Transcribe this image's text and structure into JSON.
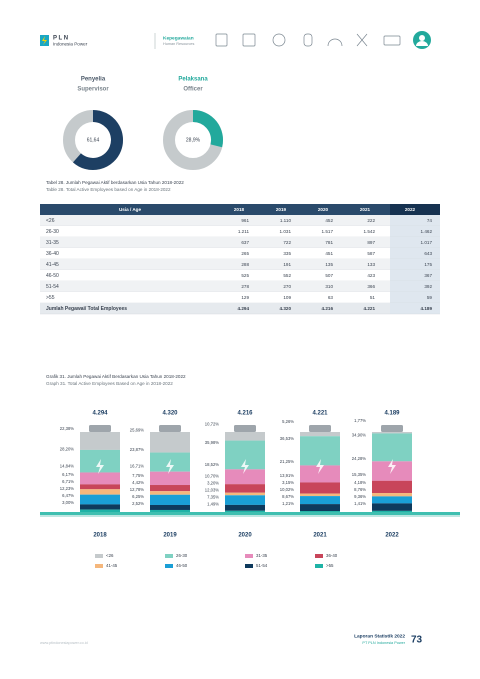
{
  "header": {
    "logo_title": "P L N",
    "logo_subtitle": "Indonesia Power",
    "section": "Kepegawaian",
    "section_en": "Human Resources"
  },
  "donuts": [
    {
      "title": "Penyelia",
      "subtitle": "Supervisor",
      "value": 61.64,
      "value_label": "61,64",
      "color": "#1d3f63"
    },
    {
      "title": "Pelaksana",
      "subtitle": "Officer",
      "value": 28.9,
      "value_label": "28,9%",
      "color": "#22a99c"
    }
  ],
  "table": {
    "caption": "Tabel 28. Jumlah Pegawai Aktif berdasarkan Usia Tahun 2018-2022",
    "caption_en": "Table 28. Total Active Employees based on Age in 2018-2022",
    "header": [
      "Usia / Age",
      "2018",
      "2019",
      "2020",
      "2021",
      "2022"
    ],
    "rows": [
      [
        "<26",
        "961",
        "1.110",
        "452",
        "222",
        "74"
      ],
      [
        "26-30",
        "1.211",
        "1.031",
        "1.517",
        "1.542",
        "1.462"
      ],
      [
        "31-35",
        "637",
        "722",
        "781",
        "897",
        "1.017"
      ],
      [
        "36-40",
        "265",
        "335",
        "451",
        "587",
        "643"
      ],
      [
        "41-45",
        "288",
        "191",
        "135",
        "133",
        "175"
      ],
      [
        "46-50",
        "525",
        "552",
        "507",
        "423",
        "367"
      ],
      [
        "51-54",
        "278",
        "270",
        "310",
        "366",
        "392"
      ],
      [
        ">55",
        "129",
        "109",
        "63",
        "51",
        "59"
      ]
    ],
    "total": [
      "Jumlah Pegawai/ Total Employees",
      "4.294",
      "4.320",
      "4.216",
      "4.221",
      "4.189"
    ]
  },
  "graph": {
    "caption": "Grafik 31. Jumlah Pegawai Aktif Berdasarkan Usia Tahun 2018-2022",
    "caption_en": "Graph 31. Total Active Employees Based on Age in 2018-2022",
    "categories": [
      "2018",
      "2019",
      "2020",
      "2021",
      "2022"
    ],
    "totals": [
      "4.294",
      "4.320",
      "4.216",
      "4.221",
      "4.189"
    ],
    "series": [
      {
        "name": "<26",
        "color": "#c5cacc",
        "values": [
          22.38,
          25.69,
          10.72,
          5.26,
          1.77
        ],
        "value_labels": [
          "22,38%",
          "25,69%",
          "10,72%",
          "5,26%",
          "1,77%"
        ]
      },
      {
        "name": "26-30",
        "color": "#7fd1c2",
        "values": [
          28.2,
          23.87,
          35.98,
          36.53,
          34.9
        ],
        "value_labels": [
          "28,20%",
          "23,87%",
          "35,98%",
          "36,53%",
          "34,90%"
        ]
      },
      {
        "name": "31-35",
        "color": "#e68bbb",
        "values": [
          14.84,
          16.71,
          18.52,
          21.25,
          24.28
        ],
        "value_labels": [
          "14,84%",
          "16,71%",
          "18,52%",
          "21,25%",
          "24,28%"
        ]
      },
      {
        "name": "36-40",
        "color": "#c8455a",
        "values": [
          6.17,
          7.75,
          10.7,
          13.91,
          15.35
        ],
        "value_labels": [
          "6,17%",
          "7,75%",
          "10,70%",
          "13,91%",
          "15,35%"
        ]
      },
      {
        "name": "41-45",
        "color": "#f5b77c",
        "values": [
          6.71,
          4.42,
          3.2,
          3.15,
          4.18
        ],
        "value_labels": [
          "6,71%",
          "4,42%",
          "3,20%",
          "3,15%",
          "4,18%"
        ]
      },
      {
        "name": "46-50",
        "color": "#1a9fd6",
        "values": [
          12.23,
          12.78,
          12.03,
          10.02,
          8.76
        ],
        "value_labels": [
          "12,23%",
          "12,78%",
          "12,03%",
          "10,02%",
          "8,76%"
        ]
      },
      {
        "name": "51-54",
        "color": "#0e3a5d",
        "values": [
          6.47,
          6.25,
          7.35,
          8.67,
          9.36
        ],
        "value_labels": [
          "6,47%",
          "6,25%",
          "7,35%",
          "8,67%",
          "9,36%"
        ]
      },
      {
        "name": ">55",
        "color": "#1fb3a6",
        "values": [
          3.0,
          2.52,
          1.49,
          1.21,
          1.41
        ],
        "value_labels": [
          "3,00%",
          "2,52%",
          "1,49%",
          "1,21%",
          "1,41%"
        ]
      }
    ]
  },
  "footer": {
    "url": "www.ptindonesiapower.co.id",
    "report": "Laporan Statistik 2022",
    "company": "PT PLN Indonesia Power",
    "page": "73"
  }
}
